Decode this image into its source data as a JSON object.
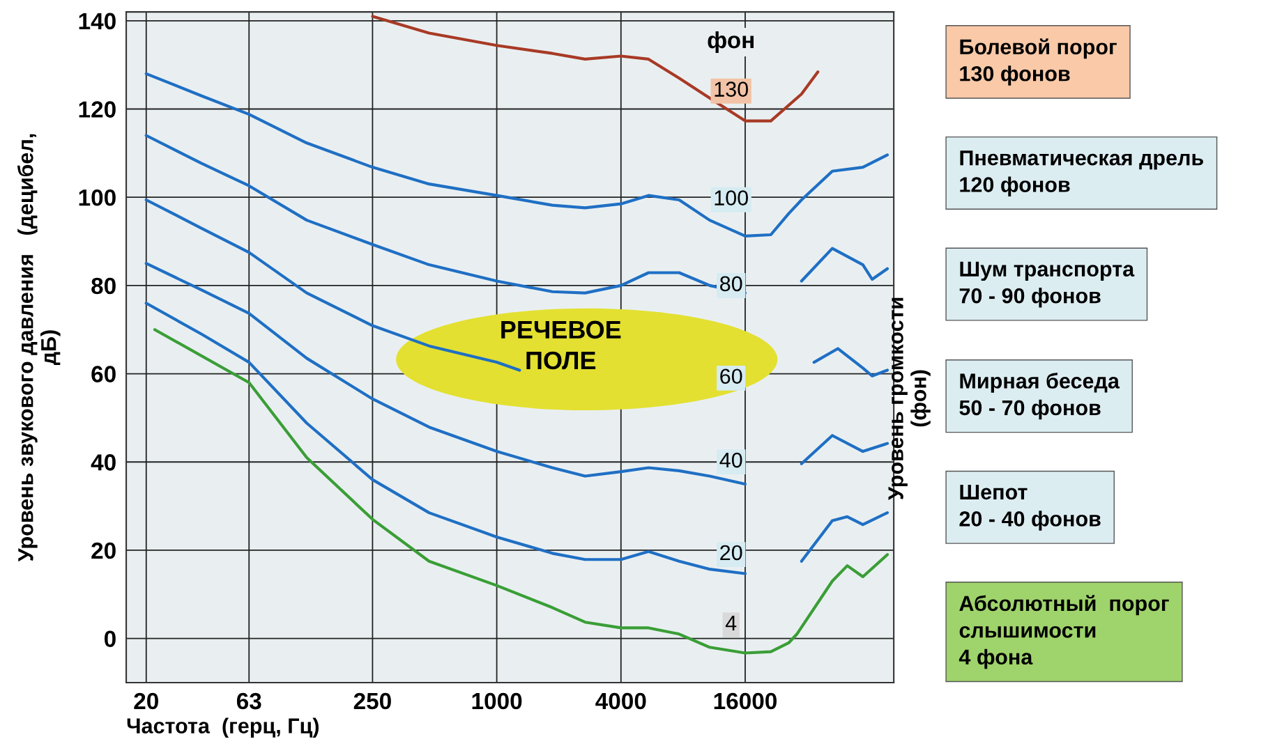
{
  "chart_data": {
    "type": "line",
    "xlabel": "Частота  (герц, Гц)",
    "ylabel": "Уровень звукового давления   (децибел,\nдБ)",
    "log": "x",
    "xlim": [
      16,
      84000
    ],
    "xticks": [
      20,
      63,
      250,
      1000,
      4000,
      16000
    ],
    "ylim": [
      -10,
      142
    ],
    "yticks": [
      0,
      20,
      40,
      60,
      80,
      100,
      120,
      140
    ],
    "grid": true,
    "marker": "none",
    "line_style": "solid",
    "series": [
      {
        "color": "#a83a25",
        "x": [
          250,
          470,
          1000,
          1860,
          2680,
          4000,
          5440,
          7660,
          10760,
          16000,
          21300,
          30000,
          36000
        ],
        "values": [
          141,
          137.2,
          134.4,
          132.6,
          131.3,
          132,
          131.3,
          127,
          122.5,
          117.3,
          117.3,
          123.4,
          128.4
        ]
      },
      {
        "color": "#1f6fc4",
        "x": [
          20,
          37,
          63,
          120,
          250,
          470,
          1000,
          1860,
          2680,
          4000,
          5440,
          7660,
          10760,
          16000,
          21300,
          26000,
          30000,
          42300,
          59500,
          78200
        ],
        "values": [
          128,
          123,
          118.8,
          112.3,
          106.8,
          103,
          100.4,
          98.2,
          97.6,
          98.5,
          100.4,
          99.4,
          94.8,
          91.2,
          91.5,
          96.3,
          99.4,
          105.9,
          106.8,
          109.6
        ]
      },
      {
        "color": "#1f6fc4",
        "x": [
          20,
          37,
          63,
          120,
          250,
          470,
          1000,
          1860,
          2680,
          4000,
          5440,
          7660,
          10760,
          16000,
          21300,
          30000,
          42300,
          59500,
          66000,
          78200
        ],
        "values": [
          114,
          107.7,
          102.6,
          94.8,
          89.3,
          84.7,
          81,
          78.6,
          78.3,
          80,
          82.9,
          82.9,
          80,
          78.3,
          null,
          81,
          88.4,
          84.7,
          81.4,
          83.8
        ]
      },
      {
        "color": "#1f6fc4",
        "x": [
          20,
          37,
          63,
          120,
          250,
          470,
          1000,
          1290,
          4000,
          34500,
          45000,
          59500,
          66000,
          78200
        ],
        "values": [
          99.4,
          93,
          87.5,
          78.3,
          70.9,
          66.3,
          62.6,
          60.8,
          null,
          62.6,
          65.7,
          61.3,
          59.5,
          60.8
        ]
      },
      {
        "color": "#1f6fc4",
        "x": [
          20,
          37,
          63,
          120,
          250,
          470,
          1000,
          1860,
          2680,
          4000,
          5440,
          7660,
          10760,
          16000,
          21300,
          30000,
          42300,
          59500,
          78200
        ],
        "values": [
          85,
          79,
          73.7,
          63.5,
          54.3,
          47.9,
          42.4,
          38.7,
          36.8,
          37.8,
          38.7,
          38,
          36.8,
          35,
          null,
          39.6,
          46,
          42.4,
          44.2
        ]
      },
      {
        "color": "#1f6fc4",
        "x": [
          20,
          37,
          63,
          120,
          250,
          470,
          1000,
          1860,
          2680,
          4000,
          5440,
          7660,
          10760,
          16000,
          21300,
          30000,
          42300,
          50000,
          59500,
          78200
        ],
        "values": [
          76,
          69,
          62.6,
          48.8,
          36,
          28.5,
          23,
          19.3,
          17.9,
          17.9,
          19.7,
          17.5,
          15.7,
          14.7,
          null,
          17.5,
          26.7,
          27.6,
          25.8,
          28.5
        ]
      },
      {
        "color": "#3a9e36",
        "x": [
          22,
          63,
          120,
          250,
          470,
          1000,
          1860,
          2680,
          4000,
          5440,
          7660,
          10760,
          16000,
          21300,
          26000,
          28500,
          42300,
          50000,
          59500,
          78200
        ],
        "values": [
          70,
          58,
          41,
          27,
          17.5,
          12,
          7,
          3.7,
          2.4,
          2.4,
          1,
          -2,
          -3.3,
          -3,
          -1,
          1,
          13,
          16.5,
          14,
          19
        ]
      }
    ],
    "annotations": [
      "130",
      "100",
      "80",
      "60",
      "40",
      "20",
      "4",
      "фон",
      "РЕЧЕВОЕ\nПОЛЕ",
      "Уровень громкости\n(фон)",
      "Болевой порог\n130 фонов",
      "Пневматическая дрель\n120 фонов",
      "Шум транспорта\n70 - 90 фонов",
      "Мирная беседа\n50 - 70 фонов",
      "Шепот\n20 - 40 фонов",
      "Абсолютный  порог\nслышимости\n4 фона"
    ]
  }
}
